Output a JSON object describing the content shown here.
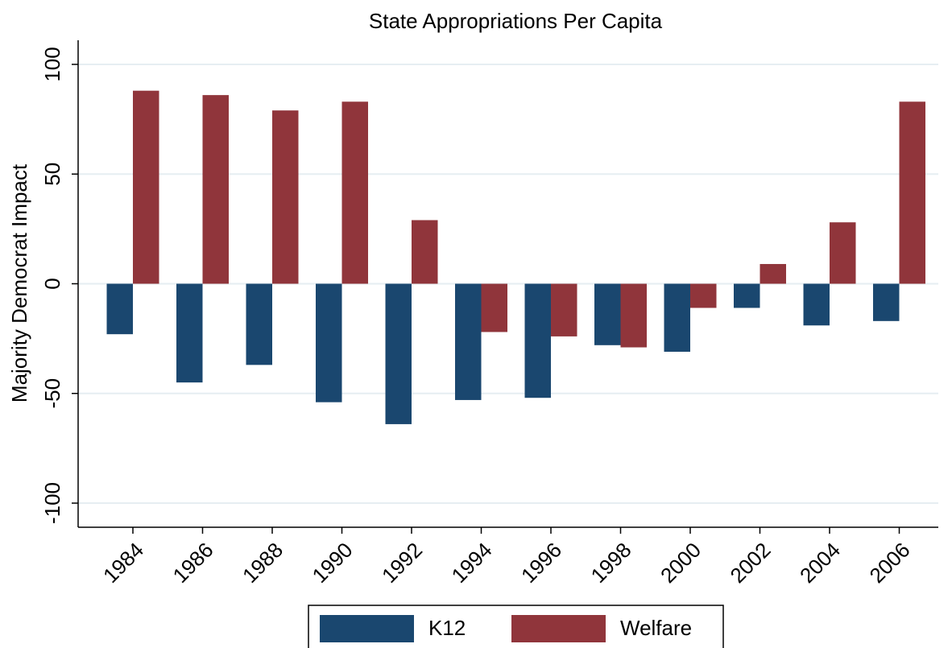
{
  "chart_data": {
    "type": "bar",
    "title": "State Appropriations Per Capita",
    "y_label": "Majority Democrat Impact",
    "categories": [
      "1984",
      "1986",
      "1988",
      "1990",
      "1992",
      "1994",
      "1996",
      "1998",
      "2000",
      "2002",
      "2004",
      "2006"
    ],
    "series": [
      {
        "name": "K12",
        "color": "#1a476f",
        "values": [
          -23,
          -45,
          -37,
          -54,
          -64,
          -53,
          -52,
          -28,
          -31,
          -11,
          -19,
          -17
        ]
      },
      {
        "name": "Welfare",
        "color": "#90353b",
        "values": [
          88,
          86,
          79,
          83,
          29,
          -22,
          -24,
          -29,
          -11,
          9,
          28,
          83
        ]
      }
    ],
    "ylim": [
      -111,
      111
    ],
    "yticks": [
      -100,
      -50,
      0,
      50,
      100
    ],
    "grid": true
  }
}
